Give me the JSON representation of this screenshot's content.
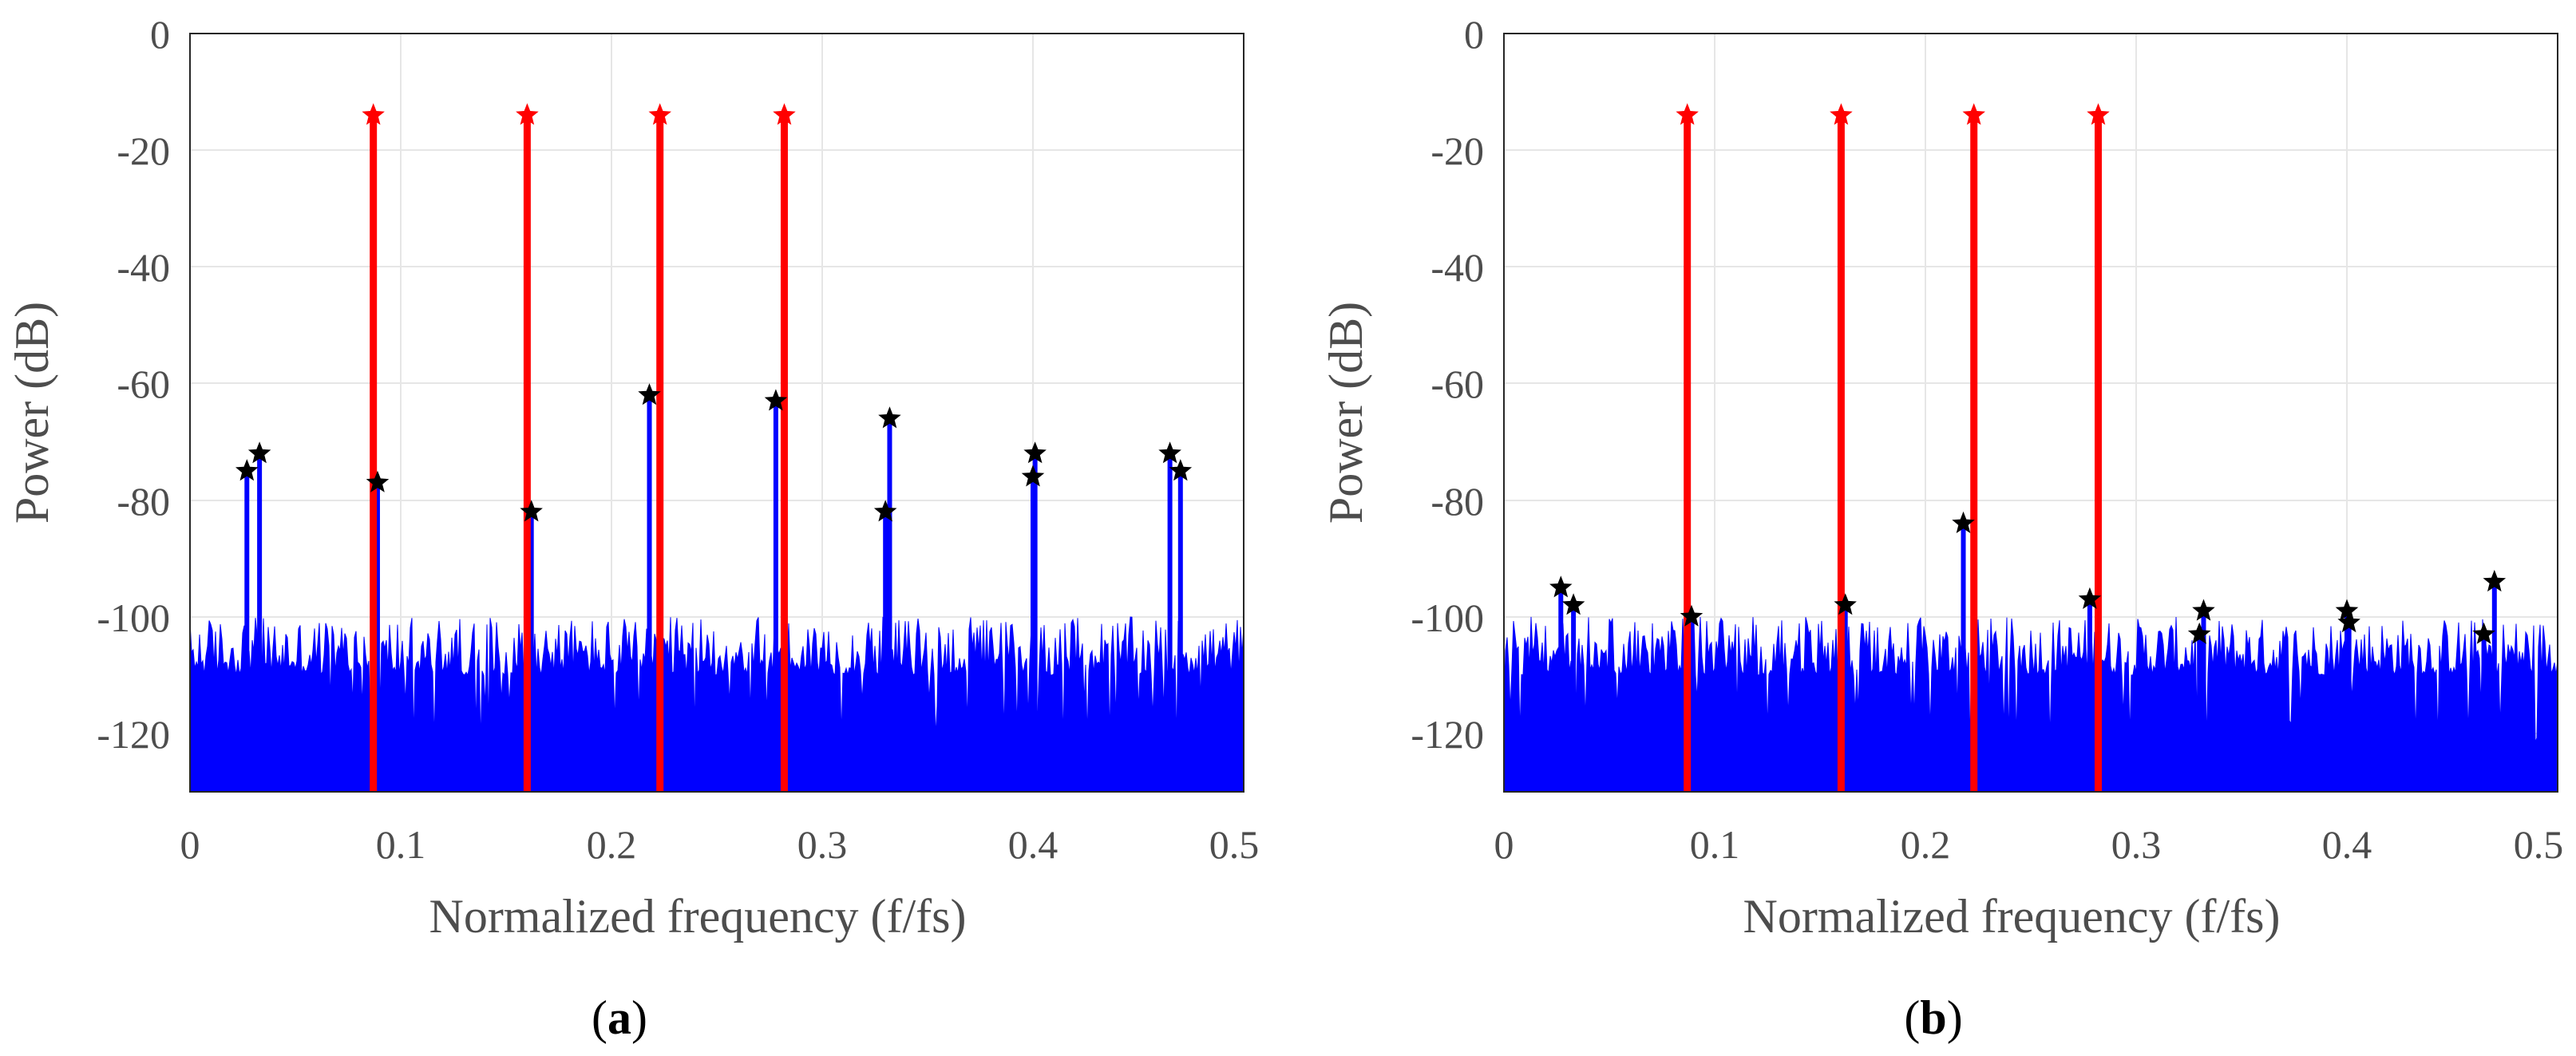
{
  "chart_data": [
    {
      "type": "line",
      "caption": {
        "open": "(",
        "letter": "a",
        "close": ")"
      },
      "xlabel": "Normalized frequency (f/fs)",
      "ylabel": "Power (dB)",
      "xlim": [
        0,
        0.5
      ],
      "ylim": [
        -130,
        0
      ],
      "xticks": [
        "0",
        "0.1",
        "0.2",
        "0.3",
        "0.4",
        "0.5"
      ],
      "yticks": [
        "0",
        "-20",
        "-40",
        "-60",
        "-80",
        "-100",
        "-120"
      ],
      "grid": true,
      "colors": {
        "spectrum": "#0000ff",
        "carrier": "#ff0000",
        "marker": "#000000"
      },
      "noise_floor_db": [
        -110,
        -100
      ],
      "carriers": [
        {
          "x": 0.087,
          "y": -14
        },
        {
          "x": 0.16,
          "y": -14
        },
        {
          "x": 0.223,
          "y": -14
        },
        {
          "x": 0.282,
          "y": -14
        }
      ],
      "spurs": [
        {
          "x": 0.027,
          "y": -75
        },
        {
          "x": 0.033,
          "y": -72
        },
        {
          "x": 0.089,
          "y": -77
        },
        {
          "x": 0.162,
          "y": -82
        },
        {
          "x": 0.218,
          "y": -62
        },
        {
          "x": 0.278,
          "y": -63
        },
        {
          "x": 0.33,
          "y": -82
        },
        {
          "x": 0.332,
          "y": -66
        },
        {
          "x": 0.4,
          "y": -76
        },
        {
          "x": 0.401,
          "y": -72
        },
        {
          "x": 0.465,
          "y": -72
        },
        {
          "x": 0.47,
          "y": -75
        }
      ]
    },
    {
      "type": "line",
      "caption": {
        "open": "(",
        "letter": "b",
        "close": ")"
      },
      "xlabel": "Normalized frequency (f/fs)",
      "ylabel": "Power (dB)",
      "xlim": [
        0,
        0.5
      ],
      "ylim": [
        -130,
        0
      ],
      "xticks": [
        "0",
        "0.1",
        "0.2",
        "0.3",
        "0.4",
        "0.5"
      ],
      "yticks": [
        "0",
        "-20",
        "-40",
        "-60",
        "-80",
        "-100",
        "-120"
      ],
      "grid": true,
      "colors": {
        "spectrum": "#0000ff",
        "carrier": "#ff0000",
        "marker": "#000000"
      },
      "noise_floor_db": [
        -110,
        -100
      ],
      "carriers": [
        {
          "x": 0.087,
          "y": -14
        },
        {
          "x": 0.16,
          "y": -14
        },
        {
          "x": 0.223,
          "y": -14
        },
        {
          "x": 0.282,
          "y": -14
        }
      ],
      "spurs": [
        {
          "x": 0.027,
          "y": -95
        },
        {
          "x": 0.033,
          "y": -98
        },
        {
          "x": 0.089,
          "y": -100
        },
        {
          "x": 0.162,
          "y": -98
        },
        {
          "x": 0.218,
          "y": -84
        },
        {
          "x": 0.278,
          "y": -97
        },
        {
          "x": 0.33,
          "y": -103
        },
        {
          "x": 0.332,
          "y": -99
        },
        {
          "x": 0.4,
          "y": -99
        },
        {
          "x": 0.401,
          "y": -101
        },
        {
          "x": 0.465,
          "y": -103
        },
        {
          "x": 0.47,
          "y": -94
        }
      ]
    }
  ]
}
